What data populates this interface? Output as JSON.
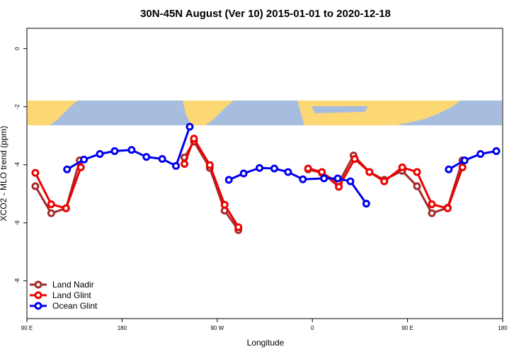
{
  "chart_data": {
    "type": "line",
    "title": "30N-45N August (Ver 10)   2015-01-01 to 2020-12-18",
    "x_label": "Longitude",
    "y_label": "XCO2 - MLO trend (ppm)",
    "xlim": [
      90,
      540
    ],
    "xticks": [
      {
        "value": 90,
        "label": "90 E"
      },
      {
        "value": 180,
        "label": "180"
      },
      {
        "value": 270,
        "label": "90 W"
      },
      {
        "value": 360,
        "label": "0"
      },
      {
        "value": 450,
        "label": "90 E"
      },
      {
        "value": 540,
        "label": "180"
      }
    ],
    "ylim": [
      -9.3,
      0.7
    ],
    "yticks": [
      0,
      -2,
      -4,
      -6,
      -8
    ],
    "legend": "bottom-left",
    "series": [
      {
        "name": "Land Nadir",
        "color": "#a52a2a",
        "x": [
          98,
          113,
          127,
          140,
          null,
          239,
          248,
          263,
          277,
          290,
          null,
          356,
          369,
          385,
          399,
          414,
          428,
          445,
          459,
          473,
          488,
          502
        ],
        "values": [
          -4.74,
          -5.67,
          -5.5,
          -3.85,
          null,
          -3.75,
          -3.2,
          -4.11,
          -5.58,
          -6.25,
          null,
          -4.16,
          -4.28,
          -4.62,
          -3.68,
          -4.25,
          -4.52,
          -4.21,
          -4.74,
          -5.67,
          -5.48,
          -3.85
        ]
      },
      {
        "name": "Land Glint",
        "color": "#ee0000",
        "x": [
          98,
          113,
          127,
          141,
          null,
          239,
          248,
          263,
          277,
          290,
          null,
          356,
          369,
          385,
          400,
          414,
          428,
          445,
          459,
          473,
          488,
          502
        ],
        "values": [
          -4.28,
          -5.36,
          -5.5,
          -4.09,
          null,
          -3.97,
          -3.1,
          -4.01,
          -5.38,
          -6.15,
          null,
          -4.13,
          -4.25,
          -4.76,
          -3.8,
          -4.25,
          -4.57,
          -4.09,
          -4.25,
          -5.36,
          -5.5,
          -4.09
        ]
      },
      {
        "name": "Ocean Glint",
        "color": "#0000ee",
        "x": [
          128,
          144,
          159,
          173,
          189,
          203,
          218,
          231,
          244,
          null,
          281,
          295,
          310,
          324,
          337,
          351,
          371,
          384,
          396,
          411,
          null,
          489,
          504,
          519,
          534
        ],
        "values": [
          -4.16,
          -3.82,
          -3.63,
          -3.53,
          -3.49,
          -3.73,
          -3.8,
          -4.04,
          -2.69,
          null,
          -4.52,
          -4.3,
          -4.11,
          -4.13,
          -4.25,
          -4.5,
          -4.47,
          -4.47,
          -4.57,
          -5.34,
          null,
          -4.16,
          -3.85,
          -3.63,
          -3.53
        ]
      }
    ]
  }
}
